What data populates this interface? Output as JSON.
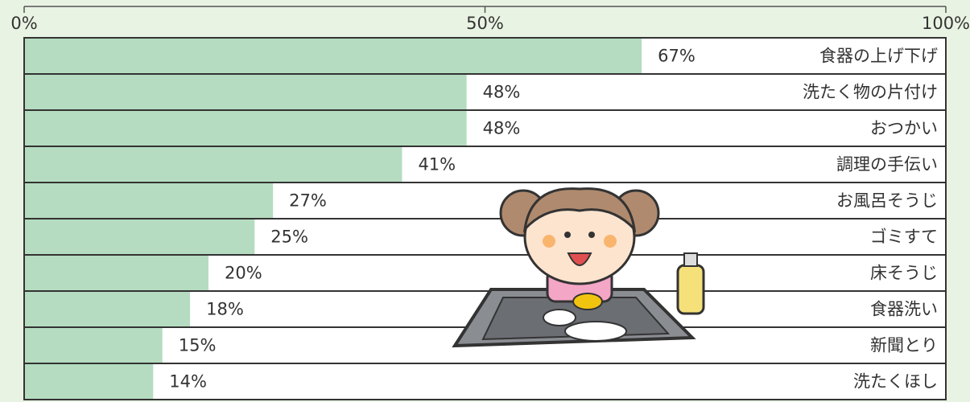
{
  "chart_data": {
    "type": "bar",
    "orientation": "horizontal",
    "categories": [
      "食器の上げ下げ",
      "洗たく物の片付け",
      "おつかい",
      "調理の手伝い",
      "お風呂そうじ",
      "ゴミすて",
      "床そうじ",
      "食器洗い",
      "新聞とり",
      "洗たくほし"
    ],
    "values": [
      67,
      48,
      48,
      41,
      27,
      25,
      20,
      18,
      15,
      14
    ],
    "value_labels": [
      "67%",
      "48%",
      "48%",
      "41%",
      "27%",
      "25%",
      "20%",
      "18%",
      "15%",
      "14%"
    ],
    "color": "#b5dcc0",
    "xlim": [
      0,
      100
    ],
    "xticks": [
      {
        "value": 0,
        "label": "0%"
      },
      {
        "value": 50,
        "label": "50%"
      },
      {
        "value": 100,
        "label": "100%"
      }
    ]
  }
}
